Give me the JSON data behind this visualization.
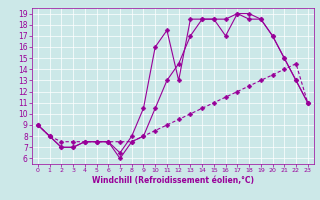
{
  "xlabel": "Windchill (Refroidissement éolien,°C)",
  "bg_color": "#cce8e8",
  "line_color": "#990099",
  "grid_color": "#ffffff",
  "xlim": [
    -0.5,
    23.5
  ],
  "ylim": [
    5.5,
    19.5
  ],
  "xticks": [
    0,
    1,
    2,
    3,
    4,
    5,
    6,
    7,
    8,
    9,
    10,
    11,
    12,
    13,
    14,
    15,
    16,
    17,
    18,
    19,
    20,
    21,
    22,
    23
  ],
  "yticks": [
    6,
    7,
    8,
    9,
    10,
    11,
    12,
    13,
    14,
    15,
    16,
    17,
    18,
    19
  ],
  "line1_x": [
    0,
    1,
    2,
    3,
    4,
    5,
    6,
    7,
    8,
    9,
    10,
    11,
    12,
    13,
    14,
    15,
    16,
    17,
    18,
    19,
    20,
    21,
    22,
    23
  ],
  "line1_y": [
    9.0,
    8.0,
    7.0,
    7.0,
    7.5,
    7.5,
    7.5,
    6.0,
    7.5,
    8.0,
    10.5,
    13.0,
    14.5,
    17.0,
    18.5,
    18.5,
    18.5,
    19.0,
    18.5,
    18.5,
    17.0,
    15.0,
    13.0,
    11.0
  ],
  "line2_x": [
    0,
    1,
    2,
    3,
    4,
    5,
    6,
    7,
    8,
    9,
    10,
    11,
    12,
    13,
    14,
    15,
    16,
    17,
    18,
    19,
    20,
    21,
    22,
    23
  ],
  "line2_y": [
    9.0,
    8.0,
    7.5,
    7.5,
    7.5,
    7.5,
    7.5,
    7.5,
    7.5,
    8.0,
    8.5,
    9.0,
    9.5,
    10.0,
    10.5,
    11.0,
    11.5,
    12.0,
    12.5,
    13.0,
    13.5,
    14.0,
    14.5,
    11.0
  ],
  "line3_x": [
    0,
    1,
    2,
    3,
    4,
    5,
    6,
    7,
    8,
    9,
    10,
    11,
    12,
    13,
    14,
    15,
    16,
    17,
    18,
    19,
    20,
    21,
    22,
    23
  ],
  "line3_y": [
    9.0,
    8.0,
    7.0,
    7.0,
    7.5,
    7.5,
    7.5,
    6.5,
    8.0,
    10.5,
    16.0,
    17.5,
    13.0,
    18.5,
    18.5,
    18.5,
    17.0,
    19.0,
    19.0,
    18.5,
    17.0,
    15.0,
    13.0,
    11.0
  ],
  "xlabel_fontsize": 5.5,
  "tick_fontsize_x": 4.5,
  "tick_fontsize_y": 5.5
}
